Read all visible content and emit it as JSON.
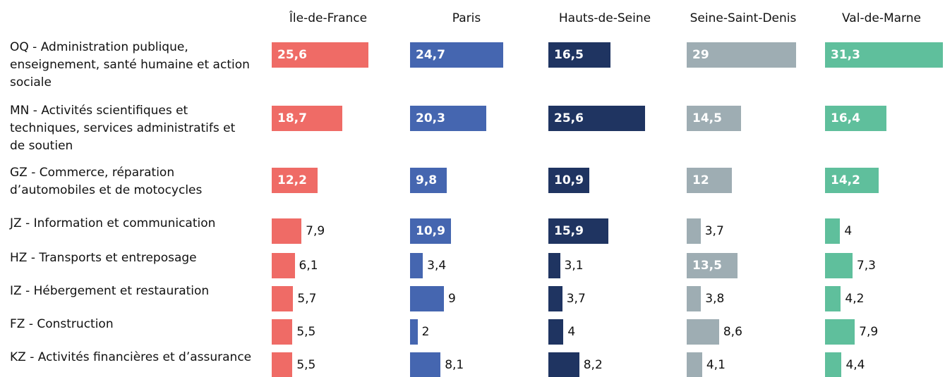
{
  "chart_data": {
    "type": "bar",
    "categories": [
      "OQ - Administration publique, enseignement, santé humaine et action sociale",
      "MN - Activités scientifiques et techniques, services administratifs et de soutien",
      "GZ - Commerce, réparation d’automobiles et de motocycles",
      "JZ - Information et communication",
      "HZ - Transports et entreposage",
      "IZ - Hébergement et restauration",
      "FZ - Construction",
      "KZ - Activités financières et d’assurance"
    ],
    "xlim": [
      0,
      30
    ],
    "series": [
      {
        "name": "Île-de-France",
        "color": "#ef6b66",
        "values": [
          25.6,
          18.7,
          12.2,
          7.9,
          6.1,
          5.7,
          5.5,
          5.5
        ],
        "value_labels": [
          "25,6",
          "18,7",
          "12,2",
          "7,9",
          "6,1",
          "5,7",
          "5,5",
          "5,5"
        ]
      },
      {
        "name": "Paris",
        "color": "#4566b0",
        "values": [
          24.7,
          20.3,
          9.8,
          10.9,
          3.4,
          9,
          2,
          8.1
        ],
        "value_labels": [
          "24,7",
          "20,3",
          "9,8",
          "10,9",
          "3,4",
          "9",
          "2",
          "8,1"
        ]
      },
      {
        "name": "Hauts-de-Seine",
        "color": "#1f3461",
        "values": [
          16.5,
          25.6,
          10.9,
          15.9,
          3.1,
          3.7,
          4,
          8.2
        ],
        "value_labels": [
          "16,5",
          "25,6",
          "10,9",
          "15,9",
          "3,1",
          "3,7",
          "4",
          "8,2"
        ]
      },
      {
        "name": "Seine-Saint-Denis",
        "color": "#9eadb3",
        "values": [
          29,
          14.5,
          12,
          3.7,
          13.5,
          3.8,
          8.6,
          4.1
        ],
        "value_labels": [
          "29",
          "14,5",
          "12",
          "3,7",
          "13,5",
          "3,8",
          "8,6",
          "4,1"
        ]
      },
      {
        "name": "Val-de-Marne",
        "color": "#5fbf9c",
        "values": [
          31.3,
          16.4,
          14.2,
          4,
          7.3,
          4.2,
          7.9,
          4.4
        ],
        "value_labels": [
          "31,3",
          "16,4",
          "14,2",
          "4",
          "7,3",
          "4,2",
          "7,9",
          "4,4"
        ]
      }
    ]
  }
}
